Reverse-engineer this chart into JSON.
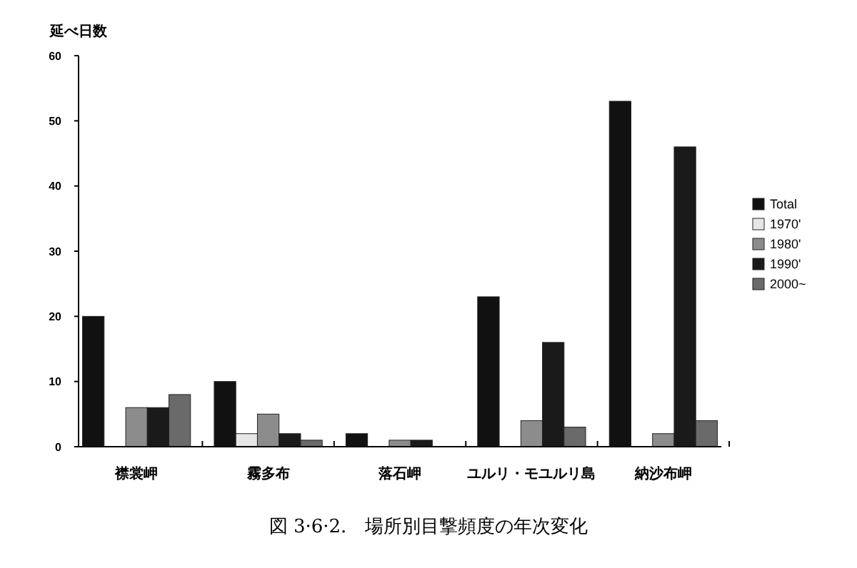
{
  "chart_data": {
    "type": "bar",
    "title": "図 3·6·2.　場所別目撃頻度の年次変化",
    "ylabel": "延べ日数",
    "categories": [
      "襟裳岬",
      "霧多布",
      "落石岬",
      "ユルリ・モユルリ島",
      "納沙布岬"
    ],
    "series": [
      {
        "name": "Total",
        "color": "#111111",
        "values": [
          20,
          10,
          2,
          23,
          53
        ]
      },
      {
        "name": "1970'",
        "color": "#e6e6e6",
        "values": [
          0,
          2,
          0,
          0,
          0
        ]
      },
      {
        "name": "1980'",
        "color": "#8c8c8c",
        "values": [
          6,
          5,
          1,
          4,
          2
        ]
      },
      {
        "name": "1990'",
        "color": "#1a1a1a",
        "values": [
          6,
          2,
          1,
          16,
          46
        ]
      },
      {
        "name": "2000~",
        "color": "#6a6a6a",
        "values": [
          8,
          1,
          0,
          3,
          4
        ]
      }
    ],
    "ylim": [
      0,
      60
    ],
    "yticks": [
      0,
      10,
      20,
      30,
      40,
      50,
      60
    ],
    "grid": false,
    "legend": "right"
  }
}
